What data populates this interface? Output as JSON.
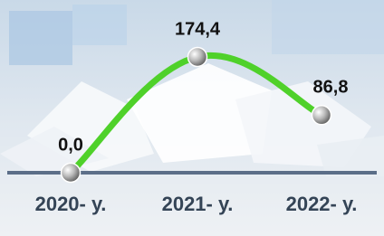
{
  "chart_data": {
    "type": "line",
    "categories": [
      "2020- у.",
      "2021- у.",
      "2022- у."
    ],
    "values": [
      0.0,
      174.4,
      86.8
    ],
    "value_labels": [
      "0,0",
      "174,4",
      "86,8"
    ],
    "color": "#4fd12a"
  }
}
